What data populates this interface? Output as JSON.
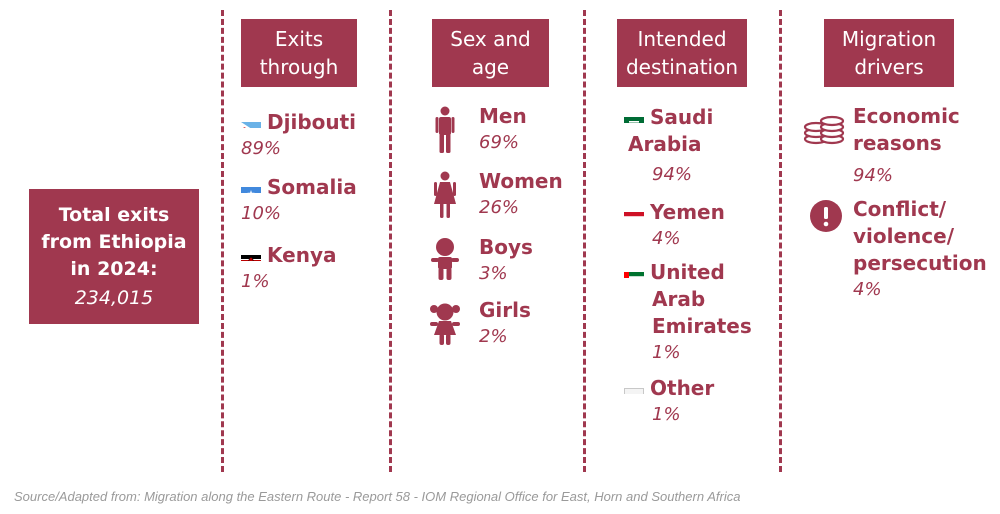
{
  "total": {
    "label_line1": "Total exits",
    "label_line2": "from Ethiopia",
    "label_line3": "in 2024:",
    "value": "234,015"
  },
  "columns": {
    "exits": {
      "header_line1": "Exits",
      "header_line2": "through",
      "items": [
        {
          "name": "Djibouti",
          "pct": "89%",
          "flag": "djibouti-flag-icon"
        },
        {
          "name": "Somalia",
          "pct": "10%",
          "flag": "somalia-flag-icon"
        },
        {
          "name": "Kenya",
          "pct": "1%",
          "flag": "kenya-flag-icon"
        }
      ]
    },
    "sex_age": {
      "header_line1": "Sex and",
      "header_line2": "age",
      "items": [
        {
          "name": "Men",
          "pct": "69%",
          "icon": "man-icon"
        },
        {
          "name": "Women",
          "pct": "26%",
          "icon": "woman-icon"
        },
        {
          "name": "Boys",
          "pct": "3%",
          "icon": "boy-icon"
        },
        {
          "name": "Girls",
          "pct": "2%",
          "icon": "girl-icon"
        }
      ]
    },
    "destination": {
      "header_line1": "Intended",
      "header_line2": "destination",
      "items": [
        {
          "name_line1": "Saudi",
          "name_line2": "Arabia",
          "pct": "94%",
          "flag": "saudi-arabia-flag-icon"
        },
        {
          "name_line1": "Yemen",
          "pct": "4%",
          "flag": "yemen-flag-icon"
        },
        {
          "name_line1": "United",
          "name_line2": "Arab",
          "name_line3": "Emirates",
          "pct": "1%",
          "flag": "uae-flag-icon"
        },
        {
          "name_line1": "Other",
          "pct": "1%",
          "flag": "white-flag-icon"
        }
      ]
    },
    "drivers": {
      "header_line1": "Migration",
      "header_line2": "drivers",
      "items": [
        {
          "name_line1": "Economic",
          "name_line2": "reasons",
          "pct": "94%",
          "icon": "coins-icon"
        },
        {
          "name_line1": "Conflict/",
          "name_line2": "violence/",
          "name_line3": "persecution",
          "pct": "4%",
          "icon": "exclamation-icon"
        }
      ]
    }
  },
  "source": "Source/Adapted from: Migration along the Eastern Route - Report 58 - IOM Regional Office for East, Horn and Southern Africa",
  "colors": {
    "accent": "#a0384f",
    "source_text": "#9a9a9a"
  }
}
